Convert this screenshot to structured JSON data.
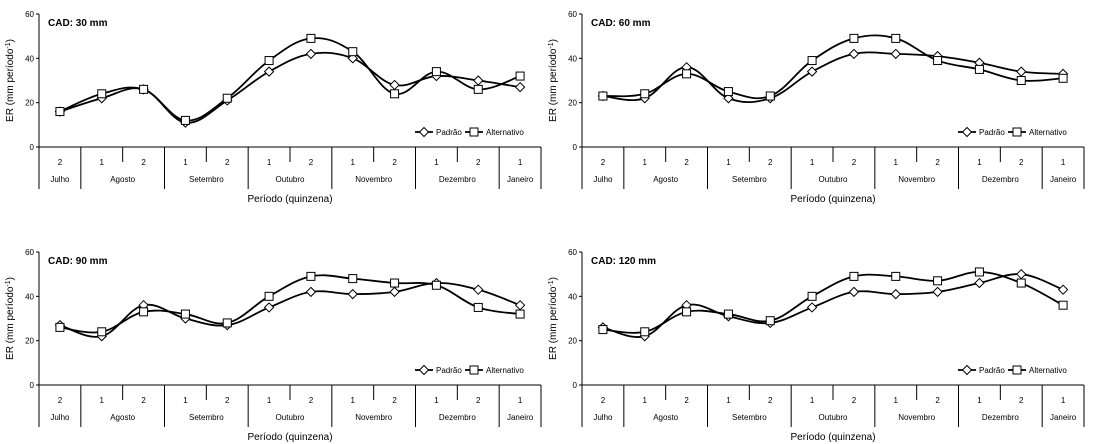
{
  "chart_data": [
    {
      "type": "line",
      "title": "CAD: 30 mm",
      "xlabel": "Período (quinzena)",
      "ylabel": "ER (mm período-1)",
      "ylim": [
        0,
        60
      ],
      "yticks": [
        0,
        20,
        40,
        60
      ],
      "categories": [
        "2",
        "1",
        "2",
        "1",
        "2",
        "1",
        "2",
        "1",
        "2",
        "1",
        "2",
        "1"
      ],
      "months": [
        {
          "name": "Julho",
          "count": 1
        },
        {
          "name": "Agosto",
          "count": 2
        },
        {
          "name": "Setembro",
          "count": 2
        },
        {
          "name": "Outubro",
          "count": 2
        },
        {
          "name": "Novembro",
          "count": 2
        },
        {
          "name": "Dezembro",
          "count": 2
        },
        {
          "name": "Janeiro",
          "count": 1
        }
      ],
      "legend_position": "bottom-right",
      "series": [
        {
          "name": "Padrão",
          "marker": "diamond",
          "values": [
            16,
            22,
            26,
            11,
            21,
            34,
            42,
            40,
            28,
            32,
            30,
            27
          ]
        },
        {
          "name": "Alternativo",
          "marker": "square",
          "values": [
            16,
            24,
            26,
            12,
            22,
            39,
            49,
            43,
            24,
            34,
            26,
            32
          ]
        }
      ]
    },
    {
      "type": "line",
      "title": "CAD: 60 mm",
      "xlabel": "Período (quinzena)",
      "ylabel": "ER (mm período-1)",
      "ylim": [
        0,
        60
      ],
      "yticks": [
        0,
        20,
        40,
        60
      ],
      "categories": [
        "2",
        "1",
        "2",
        "1",
        "2",
        "1",
        "2",
        "1",
        "2",
        "1",
        "2",
        "1"
      ],
      "months": [
        {
          "name": "Julho",
          "count": 1
        },
        {
          "name": "Agosto",
          "count": 2
        },
        {
          "name": "Setembro",
          "count": 2
        },
        {
          "name": "Outubro",
          "count": 2
        },
        {
          "name": "Novembro",
          "count": 2
        },
        {
          "name": "Dezembro",
          "count": 2
        },
        {
          "name": "Janeiro",
          "count": 1
        }
      ],
      "legend_position": "bottom-right",
      "series": [
        {
          "name": "Padrão",
          "marker": "diamond",
          "values": [
            23,
            22,
            36,
            22,
            22,
            34,
            42,
            42,
            41,
            38,
            34,
            33
          ]
        },
        {
          "name": "Alternativo",
          "marker": "square",
          "values": [
            23,
            24,
            33,
            25,
            23,
            39,
            49,
            49,
            39,
            35,
            30,
            31
          ]
        }
      ]
    },
    {
      "type": "line",
      "title": "CAD: 90 mm",
      "xlabel": "Período (quinzena)",
      "ylabel": "ER (mm período-1)",
      "ylim": [
        0,
        60
      ],
      "yticks": [
        0,
        20,
        40,
        60
      ],
      "categories": [
        "2",
        "1",
        "2",
        "1",
        "2",
        "1",
        "2",
        "1",
        "2",
        "1",
        "2",
        "1"
      ],
      "months": [
        {
          "name": "Julho",
          "count": 1
        },
        {
          "name": "Agosto",
          "count": 2
        },
        {
          "name": "Setembro",
          "count": 2
        },
        {
          "name": "Outubro",
          "count": 2
        },
        {
          "name": "Novembro",
          "count": 2
        },
        {
          "name": "Dezembro",
          "count": 2
        },
        {
          "name": "Janeiro",
          "count": 1
        }
      ],
      "legend_position": "bottom-right",
      "series": [
        {
          "name": "Padrão",
          "marker": "diamond",
          "values": [
            27,
            22,
            36,
            30,
            27,
            35,
            42,
            41,
            42,
            46,
            43,
            36
          ]
        },
        {
          "name": "Alternativo",
          "marker": "square",
          "values": [
            26,
            24,
            33,
            32,
            28,
            40,
            49,
            48,
            46,
            45,
            35,
            32
          ]
        }
      ]
    },
    {
      "type": "line",
      "title": "CAD: 120 mm",
      "xlabel": "Período (quinzena)",
      "ylabel": "ER (mm período-1)",
      "ylim": [
        0,
        60
      ],
      "yticks": [
        0,
        20,
        40,
        60
      ],
      "categories": [
        "2",
        "1",
        "2",
        "1",
        "2",
        "1",
        "2",
        "1",
        "2",
        "1",
        "2",
        "1"
      ],
      "months": [
        {
          "name": "Julho",
          "count": 1
        },
        {
          "name": "Agosto",
          "count": 2
        },
        {
          "name": "Setembro",
          "count": 2
        },
        {
          "name": "Outubro",
          "count": 2
        },
        {
          "name": "Novembro",
          "count": 2
        },
        {
          "name": "Dezembro",
          "count": 2
        },
        {
          "name": "Janeiro",
          "count": 1
        }
      ],
      "legend_position": "bottom-right",
      "series": [
        {
          "name": "Padrão",
          "marker": "diamond",
          "values": [
            26,
            22,
            36,
            31,
            28,
            35,
            42,
            41,
            42,
            46,
            50,
            43
          ]
        },
        {
          "name": "Alternativo",
          "marker": "square",
          "values": [
            25,
            24,
            33,
            32,
            29,
            40,
            49,
            49,
            47,
            51,
            46,
            36
          ]
        }
      ]
    }
  ]
}
